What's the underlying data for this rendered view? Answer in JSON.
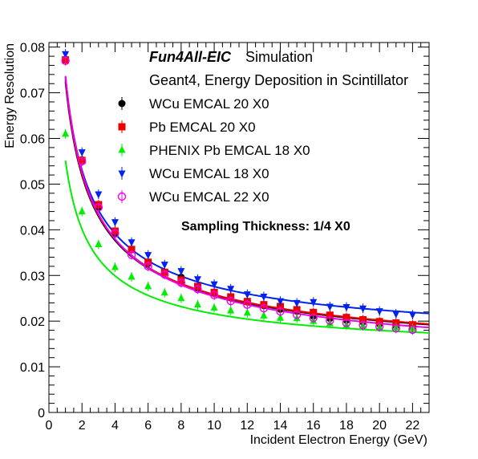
{
  "chart_data": {
    "type": "scatter",
    "title": "",
    "xlabel": "Incident Electron Energy (GeV)",
    "ylabel": "Energy Resolution",
    "xlim": [
      0,
      23
    ],
    "ylim": [
      0,
      0.081
    ],
    "x_ticks": [
      0,
      2,
      4,
      6,
      8,
      10,
      12,
      14,
      16,
      18,
      20,
      22
    ],
    "y_ticks": [
      0,
      0.01,
      0.02,
      0.03,
      0.04,
      0.05,
      0.06,
      0.07,
      0.08
    ],
    "x_tick_labels": [
      "0",
      "2",
      "4",
      "6",
      "8",
      "10",
      "12",
      "14",
      "16",
      "18",
      "20",
      "22"
    ],
    "y_tick_labels": [
      "0",
      "0.01",
      "0.02",
      "0.03",
      "0.04",
      "0.05",
      "0.06",
      "0.07",
      "0.08"
    ],
    "grid": false,
    "legend_position": "top-right",
    "header": {
      "bold_part": "Fun4All-EIC",
      "normal_part": "Simulation",
      "line2": "Geant4, Energy Deposition in Scintillator"
    },
    "annotation": "Sampling Thickness: 1/4 X0",
    "x": [
      1,
      2,
      3,
      4,
      5,
      6,
      7,
      8,
      9,
      10,
      11,
      12,
      13,
      14,
      15,
      16,
      17,
      18,
      19,
      20,
      21,
      22
    ],
    "series": [
      {
        "name": "WCu EMCAL 20 X0",
        "color": "#000000",
        "marker": "circle-filled",
        "values": [
          0.0773,
          0.0553,
          0.045,
          0.0392,
          0.0357,
          0.0326,
          0.0307,
          0.0296,
          0.0273,
          0.0262,
          0.0252,
          0.0243,
          0.0234,
          0.0226,
          0.0222,
          0.0211,
          0.0206,
          0.0202,
          0.0198,
          0.0194,
          0.0189,
          0.0186
        ],
        "fit": {
          "a": 0.0713,
          "b": 0.0122
        }
      },
      {
        "name": "Pb EMCAL 20 X0",
        "color": "#ee0000",
        "marker": "square-filled",
        "values": [
          0.0772,
          0.0552,
          0.0455,
          0.0397,
          0.0357,
          0.0329,
          0.0307,
          0.029,
          0.0276,
          0.0263,
          0.0253,
          0.0243,
          0.0236,
          0.0232,
          0.0225,
          0.0219,
          0.0213,
          0.0208,
          0.0203,
          0.0199,
          0.0196,
          0.0192
        ],
        "fit": {
          "a": 0.0718,
          "b": 0.0123
        }
      },
      {
        "name": "PHENIX Pb EMCAL 18 X0",
        "color": "#00ee00",
        "marker": "triangle-up-filled",
        "values": [
          0.061,
          0.044,
          0.0368,
          0.0318,
          0.0297,
          0.0276,
          0.0262,
          0.025,
          0.0236,
          0.0229,
          0.0223,
          0.0218,
          0.0212,
          0.0207,
          0.0206,
          0.02,
          0.0195,
          0.0191,
          0.019,
          0.0187,
          0.0186,
          0.0184
        ],
        "fit": {
          "a": 0.0535,
          "b": 0.0134
        }
      },
      {
        "name": "WCu EMCAL 18 X0",
        "color": "#0022ee",
        "marker": "triangle-down-filled",
        "values": [
          0.0785,
          0.057,
          0.0478,
          0.0417,
          0.0373,
          0.0345,
          0.0324,
          0.031,
          0.0292,
          0.0281,
          0.0271,
          0.0259,
          0.0254,
          0.0244,
          0.024,
          0.0242,
          0.0232,
          0.0231,
          0.0228,
          0.0222,
          0.0216,
          0.0214
        ],
        "fit": {
          "a": 0.0717,
          "b": 0.0157
        }
      },
      {
        "name": "WCu EMCAL 22 X0",
        "color": "#ee00ee",
        "marker": "circle-open",
        "values": [
          0.077,
          0.055,
          0.0449,
          0.0392,
          0.0345,
          0.032,
          0.0302,
          0.0284,
          0.027,
          0.0257,
          0.0244,
          0.0236,
          0.0228,
          0.0221,
          0.0214,
          0.0207,
          0.0201,
          0.0196,
          0.0191,
          0.0188,
          0.0184,
          0.0181
        ],
        "fit": {
          "a": 0.0729,
          "b": 0.0107
        }
      }
    ]
  }
}
